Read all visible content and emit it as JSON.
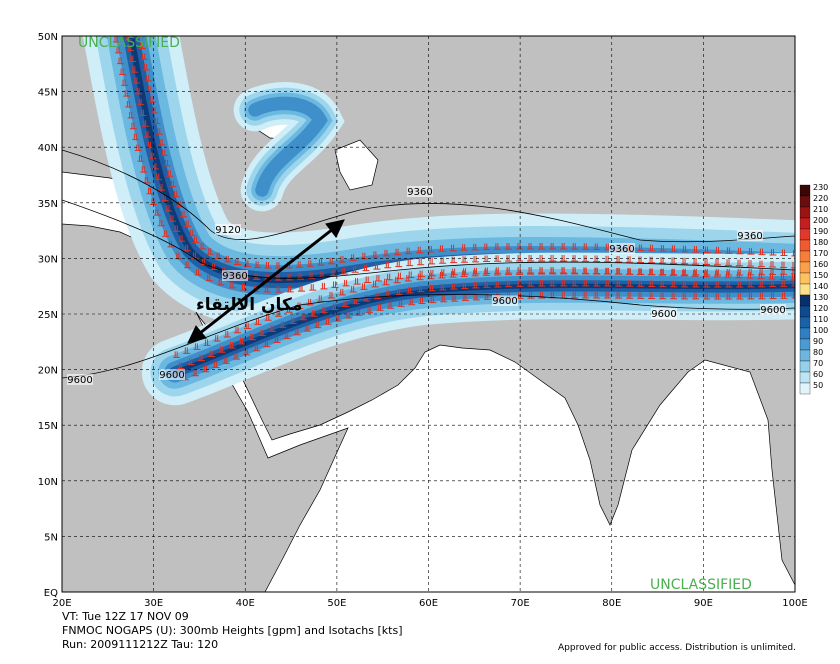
{
  "map": {
    "classification_top": "UNCLASSIFIED",
    "classification_bottom": "UNCLASSIFIED",
    "lat_labels": [
      "50N",
      "45N",
      "40N",
      "35N",
      "30N",
      "25N",
      "20N",
      "15N",
      "10N",
      "5N",
      "EQ"
    ],
    "lon_labels": [
      "20E",
      "30E",
      "40E",
      "50E",
      "60E",
      "70E",
      "80E",
      "90E",
      "100E"
    ],
    "contour_labels": [
      "9360",
      "9120",
      "9360",
      "9360",
      "9360",
      "9600",
      "9600",
      "9600",
      "9600",
      "9600"
    ],
    "annotation": "مكان الالتقاء",
    "colorbar": {
      "levels": [
        230,
        220,
        210,
        200,
        190,
        180,
        170,
        160,
        150,
        140,
        130,
        120,
        110,
        100,
        90,
        80,
        70,
        60,
        50
      ],
      "colors": [
        "#3b0606",
        "#6b0d0d",
        "#9a1414",
        "#c41e1e",
        "#e23a2a",
        "#f25a30",
        "#f87d3a",
        "#fba04a",
        "#fcc25e",
        "#fde08a",
        "#08306b",
        "#0d4a8f",
        "#1a62a8",
        "#2f7fc1",
        "#4b9ad1",
        "#6fb6df",
        "#95cfea",
        "#bce4f3",
        "#e2f4fa"
      ]
    },
    "footer": {
      "line1": "VT: Tue 12Z 17 NOV 09",
      "line2": "FNMOC NOGAPS (U): 300mb Heights [gpm] and Isotachs [kts]",
      "line3": "Run: 2009111212Z Tau: 120",
      "disclaimer": "Approved for public access. Distribution is unlimited."
    }
  }
}
